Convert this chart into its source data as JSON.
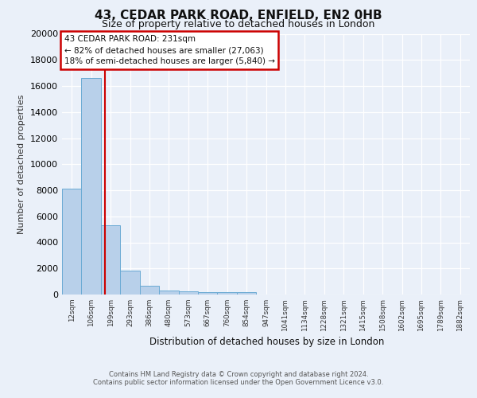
{
  "title1": "43, CEDAR PARK ROAD, ENFIELD, EN2 0HB",
  "title2": "Size of property relative to detached houses in London",
  "xlabel": "Distribution of detached houses by size in London",
  "ylabel": "Number of detached properties",
  "bar_labels": [
    "12sqm",
    "106sqm",
    "199sqm",
    "293sqm",
    "386sqm",
    "480sqm",
    "573sqm",
    "667sqm",
    "760sqm",
    "854sqm",
    "947sqm",
    "1041sqm",
    "1134sqm",
    "1228sqm",
    "1321sqm",
    "1415sqm",
    "1508sqm",
    "1602sqm",
    "1695sqm",
    "1789sqm",
    "1882sqm"
  ],
  "bar_heights": [
    8100,
    16600,
    5300,
    1850,
    700,
    320,
    230,
    200,
    180,
    170,
    0,
    0,
    0,
    0,
    0,
    0,
    0,
    0,
    0,
    0,
    0
  ],
  "bar_color": "#b8d0ea",
  "bar_edge_color": "#6aaad4",
  "property_line_x": 1.73,
  "annotation_text": "43 CEDAR PARK ROAD: 231sqm\n← 82% of detached houses are smaller (27,063)\n18% of semi-detached houses are larger (5,840) →",
  "annotation_box_color": "#ffffff",
  "annotation_box_edge": "#cc0000",
  "vertical_line_color": "#cc0000",
  "footer1": "Contains HM Land Registry data © Crown copyright and database right 2024.",
  "footer2": "Contains public sector information licensed under the Open Government Licence v3.0.",
  "ylim": [
    0,
    20000
  ],
  "yticks": [
    0,
    2000,
    4000,
    6000,
    8000,
    10000,
    12000,
    14000,
    16000,
    18000,
    20000
  ],
  "background_color": "#eaf0f9",
  "grid_color": "#ffffff"
}
